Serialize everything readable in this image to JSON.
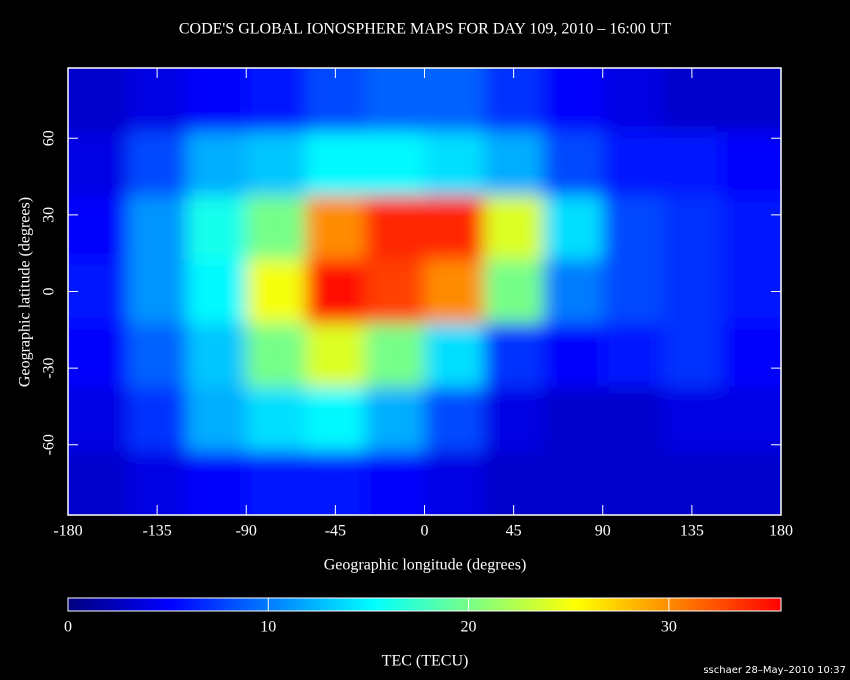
{
  "chart_data": {
    "type": "heatmap",
    "title": "CODE'S GLOBAL IONOSPHERE MAPS FOR DAY 109, 2010 – 16:00 UT",
    "x_label": "Geographic longitude (degrees)",
    "y_label": "Geographic latitude (degrees)",
    "xlim": [
      -180,
      180
    ],
    "ylim": [
      -87.5,
      87.5
    ],
    "xticks": [
      -180,
      -135,
      -90,
      -45,
      0,
      45,
      90,
      135,
      180
    ],
    "yticks": [
      -60,
      -30,
      0,
      30,
      60
    ],
    "x": [
      -165,
      -135,
      -105,
      -75,
      -45,
      -15,
      15,
      45,
      75,
      105,
      135,
      165
    ],
    "y": [
      75,
      50,
      25,
      0,
      -25,
      -50,
      -75
    ],
    "values": [
      [
        3,
        4,
        5,
        6,
        8,
        9,
        9,
        7,
        5,
        4,
        3,
        3
      ],
      [
        4,
        8,
        12,
        13,
        15,
        15,
        14,
        12,
        8,
        6,
        6,
        5
      ],
      [
        5,
        11,
        16,
        20,
        30,
        34,
        34,
        24,
        14,
        8,
        7,
        6
      ],
      [
        6,
        11,
        15,
        25,
        35,
        33,
        30,
        20,
        10,
        8,
        7,
        6
      ],
      [
        5,
        9,
        13,
        20,
        24,
        20,
        14,
        7,
        5,
        6,
        7,
        5
      ],
      [
        4,
        7,
        12,
        14,
        15,
        12,
        8,
        4,
        3,
        3,
        4,
        4
      ],
      [
        3,
        4,
        5,
        6,
        6,
        5,
        4,
        3,
        3,
        3,
        3,
        3
      ]
    ],
    "colormap": [
      "#00007f",
      "#0000ff",
      "#007fff",
      "#00ffff",
      "#7fff7f",
      "#ffff00",
      "#ff7f00",
      "#ff0000"
    ],
    "colorbar": {
      "label": "TEC (TECU)",
      "lim": [
        0,
        35.6
      ],
      "ticks": [
        0,
        10,
        20,
        30
      ]
    },
    "credit": "sschaer 28–May–2010 10:37"
  }
}
